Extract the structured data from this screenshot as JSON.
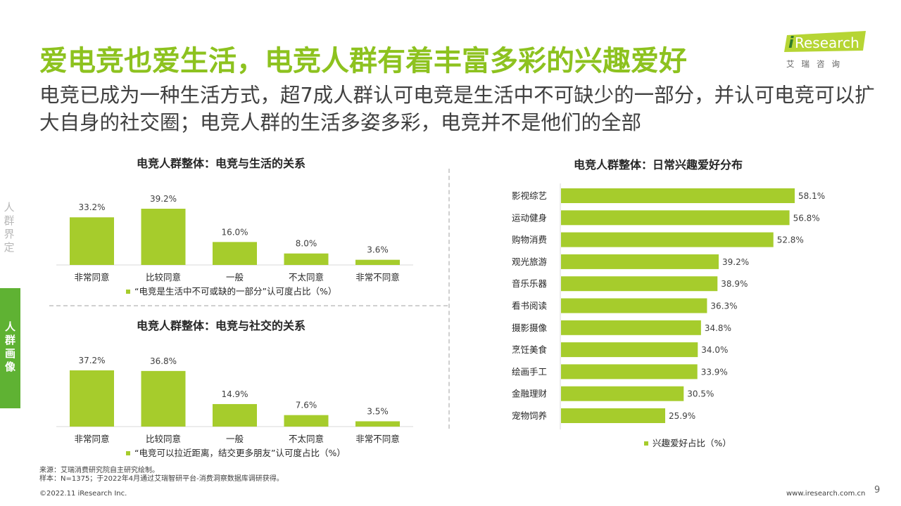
{
  "header": {
    "title": "爱电竞也爱生活，电竞人群有着丰富多彩的兴趣爱好",
    "subtitle": "电竞已成为一种生活方式，超7成人群认可电竞是生活中不可缺少的一部分，并认可电竞可以扩大自身的社交圈；电竞人群的生活多姿多彩，电竞并不是他们的全部"
  },
  "logo": {
    "text_i": "i",
    "text_rest": "Research",
    "cn": "艾瑞咨询"
  },
  "sidebar": {
    "inactive_label": "人群界定",
    "active_label": "人群画像"
  },
  "colors": {
    "bar": "#a6cc2c",
    "accent": "#8dc21f",
    "tab_active": "#5fb233"
  },
  "chart_data": [
    {
      "type": "bar",
      "title": "电竞人群整体：电竞与生活的关系",
      "categories": [
        "非常同意",
        "比较同意",
        "一般",
        "不太同意",
        "非常不同意"
      ],
      "series": [
        {
          "name": "“电竞是生活中不可或缺的一部分”认可度占比（%）",
          "values": [
            33.2,
            39.2,
            16.0,
            8.0,
            3.6
          ]
        }
      ],
      "value_labels": [
        "33.2%",
        "39.2%",
        "16.0%",
        "8.0%",
        "3.6%"
      ],
      "ylim": [
        0,
        39.2
      ],
      "legend": "bottom"
    },
    {
      "type": "bar",
      "title": "电竞人群整体：电竞与社交的关系",
      "categories": [
        "非常同意",
        "比较同意",
        "一般",
        "不太同意",
        "非常不同意"
      ],
      "series": [
        {
          "name": "“电竞可以拉近距离，结交更多朋友”认可度占比（%）",
          "values": [
            37.2,
            36.8,
            14.9,
            7.6,
            3.5
          ]
        }
      ],
      "value_labels": [
        "37.2%",
        "36.8%",
        "14.9%",
        "7.6%",
        "3.5%"
      ],
      "ylim": [
        0,
        37.2
      ],
      "legend": "bottom"
    },
    {
      "type": "bar",
      "orientation": "horizontal",
      "title": "电竞人群整体：日常兴趣爱好分布",
      "categories": [
        "影视综艺",
        "运动健身",
        "购物消费",
        "观光旅游",
        "音乐乐器",
        "看书阅读",
        "摄影摄像",
        "烹饪美食",
        "绘画手工",
        "金融理财",
        "宠物饲养"
      ],
      "series": [
        {
          "name": "兴趣爱好占比（%）",
          "values": [
            58.1,
            56.8,
            52.8,
            39.2,
            38.9,
            36.3,
            34.8,
            34.0,
            33.9,
            30.5,
            25.9
          ]
        }
      ],
      "value_labels": [
        "58.1%",
        "56.8%",
        "52.8%",
        "39.2%",
        "38.9%",
        "36.3%",
        "34.8%",
        "34.0%",
        "33.9%",
        "30.5%",
        "25.9%"
      ],
      "xlim": [
        0,
        58.1
      ],
      "legend": "bottom"
    }
  ],
  "footer": {
    "source": "来源：艾瑞消费研究院自主研究绘制。",
    "sample": "样本：N=1375；于2022年4月通过艾瑞智研平台-消费洞察数据库调研获得。",
    "copyright": "©2022.11 iResearch Inc.",
    "url": "www.iresearch.com.cn",
    "page": "9"
  }
}
